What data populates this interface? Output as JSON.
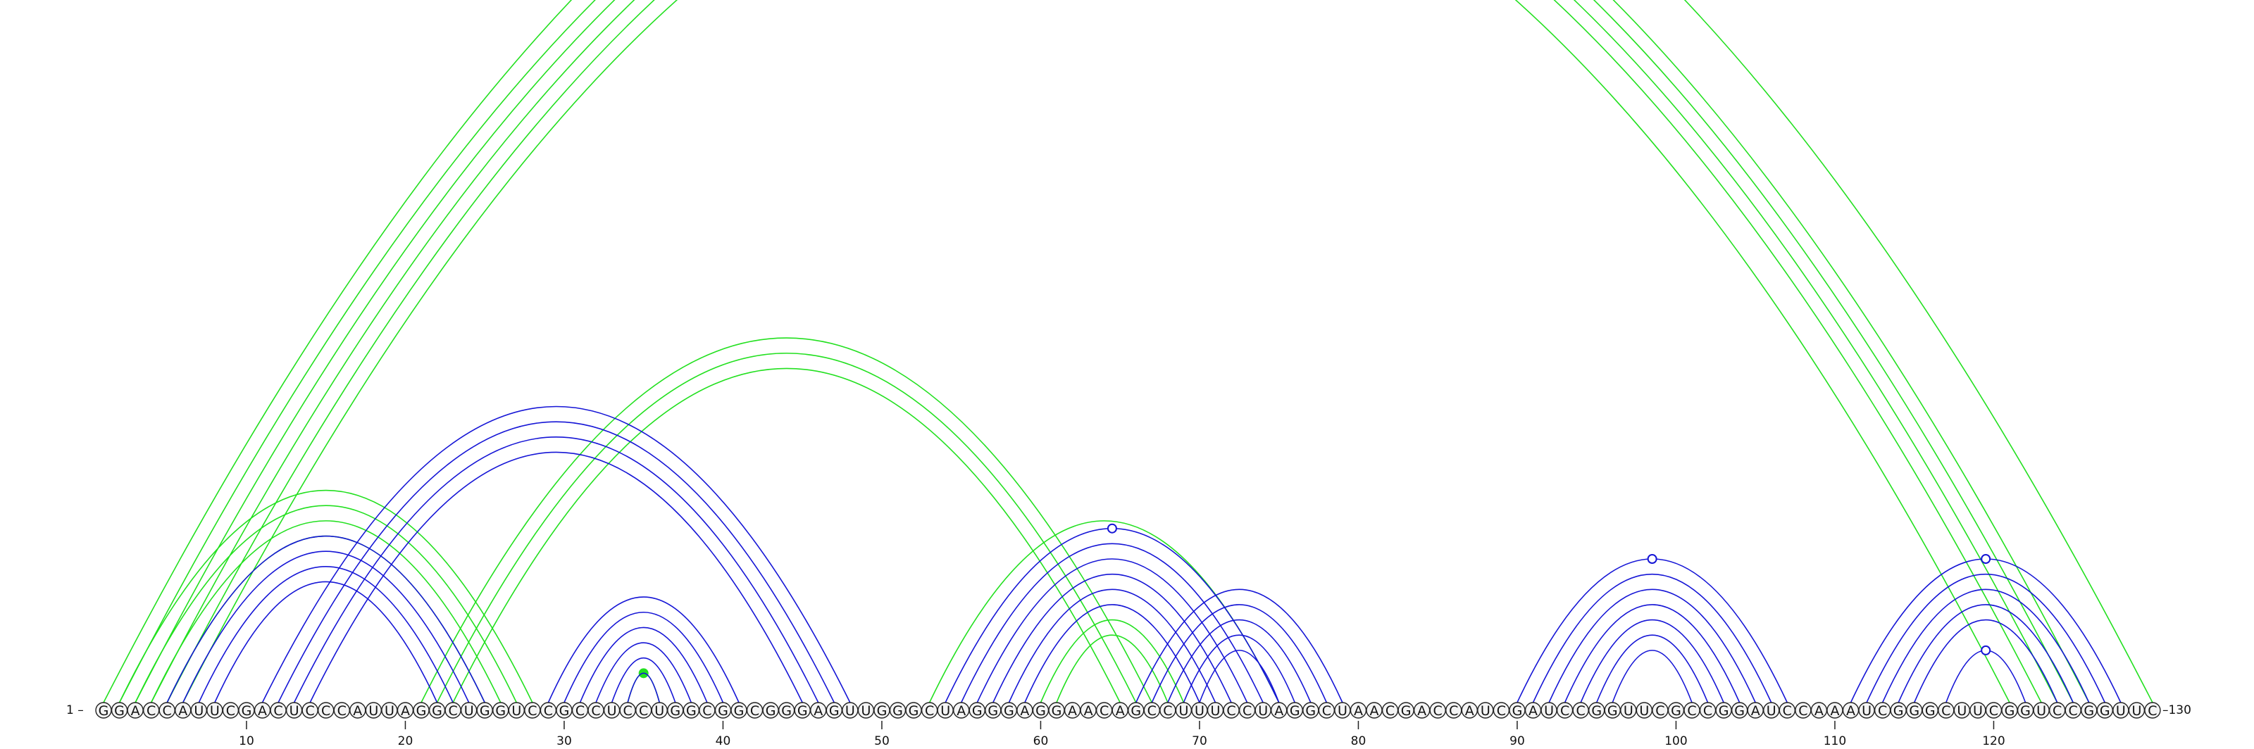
{
  "sequence": "GGACCAUUCGACUCCCAUUAGGCUGGUCCGCCUCCUGGCGGCGGGAGUUGGGCUAGGGAGGAACAGCCUUUCCUAGGCUAACGACCAUCGAUCCGGUUCGCCGGAUCCAAAUCGGGCUUCGGUCCGGUUC",
  "start_label": "1 –",
  "end_label": "–130",
  "ticks": [
    10,
    20,
    30,
    40,
    50,
    60,
    70,
    80,
    90,
    100,
    110,
    120
  ],
  "colors": {
    "green": "#22e01f",
    "blue": "#1515d6",
    "circle_fill": "#f4f4f4",
    "text": "#111111"
  },
  "chart_data": {
    "type": "arc-diagram",
    "length": 130,
    "structures": [
      {
        "color": "green",
        "side": "above",
        "helices": [
          {
            "i": 1,
            "j": 130,
            "len": 1,
            "marker": "open"
          },
          {
            "i": 2,
            "j": 126,
            "len": 4
          },
          {
            "i": 6,
            "j": 121,
            "len": 1
          },
          {
            "i": 2,
            "j": 28,
            "len": 4
          },
          {
            "i": 21,
            "j": 67,
            "len": 3
          },
          {
            "i": 34,
            "j": 36,
            "len": 1,
            "marker": "filled"
          },
          {
            "i": 53,
            "j": 75,
            "len": 1
          },
          {
            "i": 60,
            "j": 69,
            "len": 2
          }
        ]
      },
      {
        "color": "blue",
        "side": "above",
        "helices": [
          {
            "i": 5,
            "j": 25,
            "len": 4
          },
          {
            "i": 11,
            "j": 48,
            "len": 4
          },
          {
            "i": 29,
            "j": 41,
            "len": 6
          },
          {
            "i": 54,
            "j": 75,
            "len": 6,
            "marker": "open"
          },
          {
            "i": 66,
            "j": 79,
            "len": 5
          },
          {
            "i": 90,
            "j": 107,
            "len": 7,
            "marker": "open"
          },
          {
            "i": 111,
            "j": 128,
            "len": 5,
            "marker": "open"
          },
          {
            "i": 117,
            "j": 122,
            "len": 1,
            "marker": "open"
          }
        ]
      }
    ]
  }
}
